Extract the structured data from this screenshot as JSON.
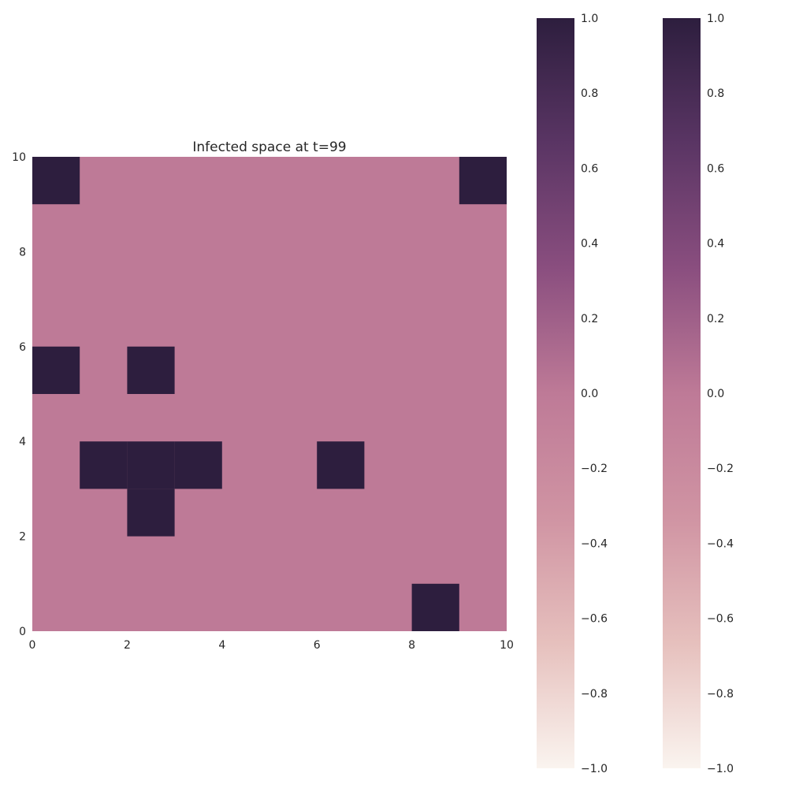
{
  "chart_data": {
    "type": "heatmap",
    "title": "Infected space at t=99",
    "xlabel": "",
    "ylabel": "",
    "xlim": [
      0,
      10
    ],
    "ylim": [
      0,
      10
    ],
    "x_ticks": [
      "0",
      "2",
      "4",
      "6",
      "8",
      "10"
    ],
    "y_ticks": [
      "0",
      "2",
      "4",
      "6",
      "8",
      "10"
    ],
    "grid": false,
    "infected_cells": [
      {
        "x": 0,
        "y": 9
      },
      {
        "x": 9,
        "y": 9
      },
      {
        "x": 0,
        "y": 5
      },
      {
        "x": 2,
        "y": 5
      },
      {
        "x": 1,
        "y": 3
      },
      {
        "x": 2,
        "y": 3
      },
      {
        "x": 3,
        "y": 3
      },
      {
        "x": 6,
        "y": 3
      },
      {
        "x": 2,
        "y": 2
      },
      {
        "x": 8,
        "y": 0
      }
    ],
    "cell_value_infected": 1.0,
    "cell_value_background": 0.0,
    "colorbars": [
      {
        "range": [
          -1.0,
          1.0
        ],
        "tick_labels": [
          "1.0",
          "0.8",
          "0.6",
          "0.4",
          "0.2",
          "0.0",
          "−0.2",
          "−0.4",
          "−0.6",
          "−0.8",
          "−1.0"
        ]
      },
      {
        "range": [
          -1.0,
          1.0
        ],
        "tick_labels": [
          "1.0",
          "0.8",
          "0.6",
          "0.4",
          "0.2",
          "0.0",
          "−0.2",
          "−0.4",
          "−0.6",
          "−0.8",
          "−1.0"
        ]
      }
    ],
    "colors": {
      "infected": "#2d1e3e",
      "background": "#be7a97",
      "scale": [
        "#faf4ef",
        "#e6c0bd",
        "#d094a3",
        "#be7a97",
        "#8a4e7f",
        "#5a3564",
        "#2d1e3e"
      ]
    }
  }
}
